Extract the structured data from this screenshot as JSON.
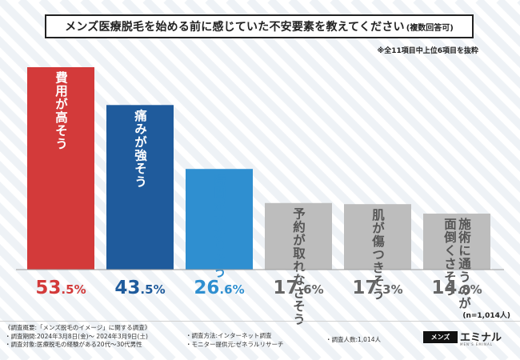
{
  "title": {
    "main": "メンズ医療脱毛を始める前に感じていた不安要素を教えてください",
    "sub": "(複数回答可)"
  },
  "note": "※全11項目中上位6項目を抜粋",
  "sample": "(n=1,014人)",
  "chart_data": {
    "type": "bar",
    "title": "メンズ医療脱毛を始める前に感じていた不安要素を教えてください(複数回答可)",
    "categories": [
      "費用が高そう",
      "痛みが強そう",
      "時間がかかりそう",
      "予約が取れなさそう",
      "肌が傷つきそう",
      "施術に通うのが面倒くさそう"
    ],
    "label_columns": [
      [
        "費用が高そう"
      ],
      [
        "痛みが強そう"
      ],
      [
        "時間がかかりそう"
      ],
      [
        "予約が取れなさそう"
      ],
      [
        "肌が傷つきそう"
      ],
      [
        "施術に通うのが",
        "面倒くさそう"
      ]
    ],
    "values": [
      53.5,
      43.5,
      26.6,
      17.6,
      17.3,
      14.8
    ],
    "value_labels": [
      [
        "53",
        ".5",
        "%"
      ],
      [
        "43",
        ".5",
        "%"
      ],
      [
        "26",
        ".6",
        "%"
      ],
      [
        "17",
        ".6",
        "%"
      ],
      [
        "17",
        ".3",
        "%"
      ],
      [
        "14",
        ".8",
        "%"
      ]
    ],
    "unit": "%",
    "ylim": [
      0,
      53.5
    ],
    "xlabel": "",
    "ylabel": "",
    "colors": [
      "#d33a3a",
      "#1f5b9c",
      "#2f8fd0",
      "#bdbdbd",
      "#bdbdbd",
      "#bdbdbd"
    ],
    "value_colors": [
      "#d33a3a",
      "#1f5b9c",
      "#2f8fd0",
      "#666666",
      "#666666",
      "#666666"
    ],
    "label_colors": [
      "#ffffff",
      "#ffffff",
      "#2f8fd0",
      "#555555",
      "#555555",
      "#555555"
    ]
  },
  "survey": {
    "col1": [
      "《調査概要:「メンズ脱毛のイメージ」に関する調査》",
      "・調査期間:2024年3月8日(金)〜 2024年3月9日(土)",
      "・調査対象:医療脱毛の経験がある20代〜30代男性"
    ],
    "col2": [
      "・調査方法:インターネット調査",
      "・モニター提供元:ゼネラルリサーチ"
    ],
    "col3": [
      "・調査人数:1,014人"
    ]
  },
  "logo": {
    "box": "メンズ",
    "name": "エミナル",
    "sub": "MEN'S EMINAL"
  }
}
